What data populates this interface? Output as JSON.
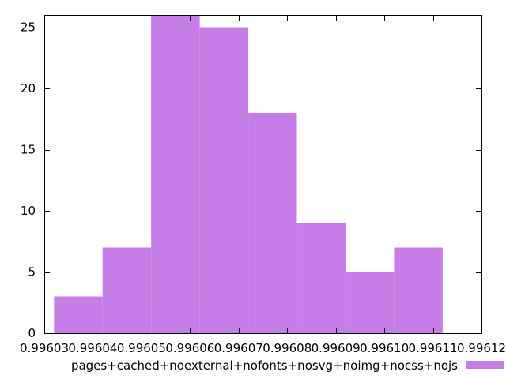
{
  "chart_data": {
    "type": "bar",
    "subtype": "histogram",
    "title": "",
    "xlabel": "",
    "ylabel": "",
    "xlim": [
      0.99603,
      0.99612
    ],
    "ylim": [
      0,
      26
    ],
    "grid": false,
    "legend_position": "bottom",
    "x_ticks": [
      0.99603,
      0.99604,
      0.99605,
      0.99606,
      0.99607,
      0.99608,
      0.99609,
      0.9961,
      0.99611,
      0.99612
    ],
    "x_tick_labels": [
      "0.99603",
      "0.99604",
      "0.99605",
      "0.99606",
      "0.99607",
      "0.99608",
      "0.99609",
      "0.99610",
      "0.99611",
      "0.99612"
    ],
    "y_ticks": [
      0,
      5,
      10,
      15,
      20,
      25
    ],
    "y_tick_labels": [
      "0",
      "5",
      "10",
      "15",
      "20",
      "25"
    ],
    "series": [
      {
        "name": "pages+cached+noexternal+nofonts+nosvg+noimg+nocss+nojs",
        "color": "#c77de8",
        "bins": [
          {
            "start": 0.996032,
            "end": 0.996042,
            "count": 3
          },
          {
            "start": 0.996042,
            "end": 0.996052,
            "count": 7
          },
          {
            "start": 0.996052,
            "end": 0.996062,
            "count": 26
          },
          {
            "start": 0.996062,
            "end": 0.996072,
            "count": 25
          },
          {
            "start": 0.996072,
            "end": 0.996082,
            "count": 18
          },
          {
            "start": 0.996082,
            "end": 0.996092,
            "count": 9
          },
          {
            "start": 0.996092,
            "end": 0.996102,
            "count": 5
          },
          {
            "start": 0.996102,
            "end": 0.996112,
            "count": 7
          }
        ]
      }
    ]
  }
}
